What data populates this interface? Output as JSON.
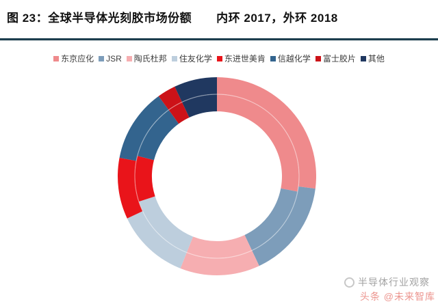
{
  "figure": {
    "title_main": "图 23：全球半导体光刻胶市场份额",
    "title_note": "内环 2017，外环 2018"
  },
  "chart_data": {
    "type": "pie",
    "subtype": "double-ring-donut",
    "title": "全球半导体光刻胶市场份额",
    "unit": "%",
    "direction": "clockwise-from-top",
    "legend_position": "top",
    "categories": [
      "东京应化",
      "JSR",
      "陶氏杜邦",
      "住友化学",
      "东进世美肯",
      "信越化学",
      "富士胶片",
      "其他"
    ],
    "colors": [
      "#EF8A8C",
      "#7D9DBA",
      "#F6AEB1",
      "#BDCEDD",
      "#E9141A",
      "#33648E",
      "#CC1218",
      "#203860"
    ],
    "series": [
      {
        "name": "2017",
        "ring": "inner",
        "values": [
          28,
          15,
          13,
          14,
          9,
          11,
          3,
          7
        ]
      },
      {
        "name": "2018",
        "ring": "outer",
        "values": [
          27,
          16,
          13,
          12,
          10,
          12,
          3,
          7
        ]
      }
    ]
  },
  "watermark": {
    "brand": "半导体行业观察",
    "source": "头条 @未来智库"
  }
}
